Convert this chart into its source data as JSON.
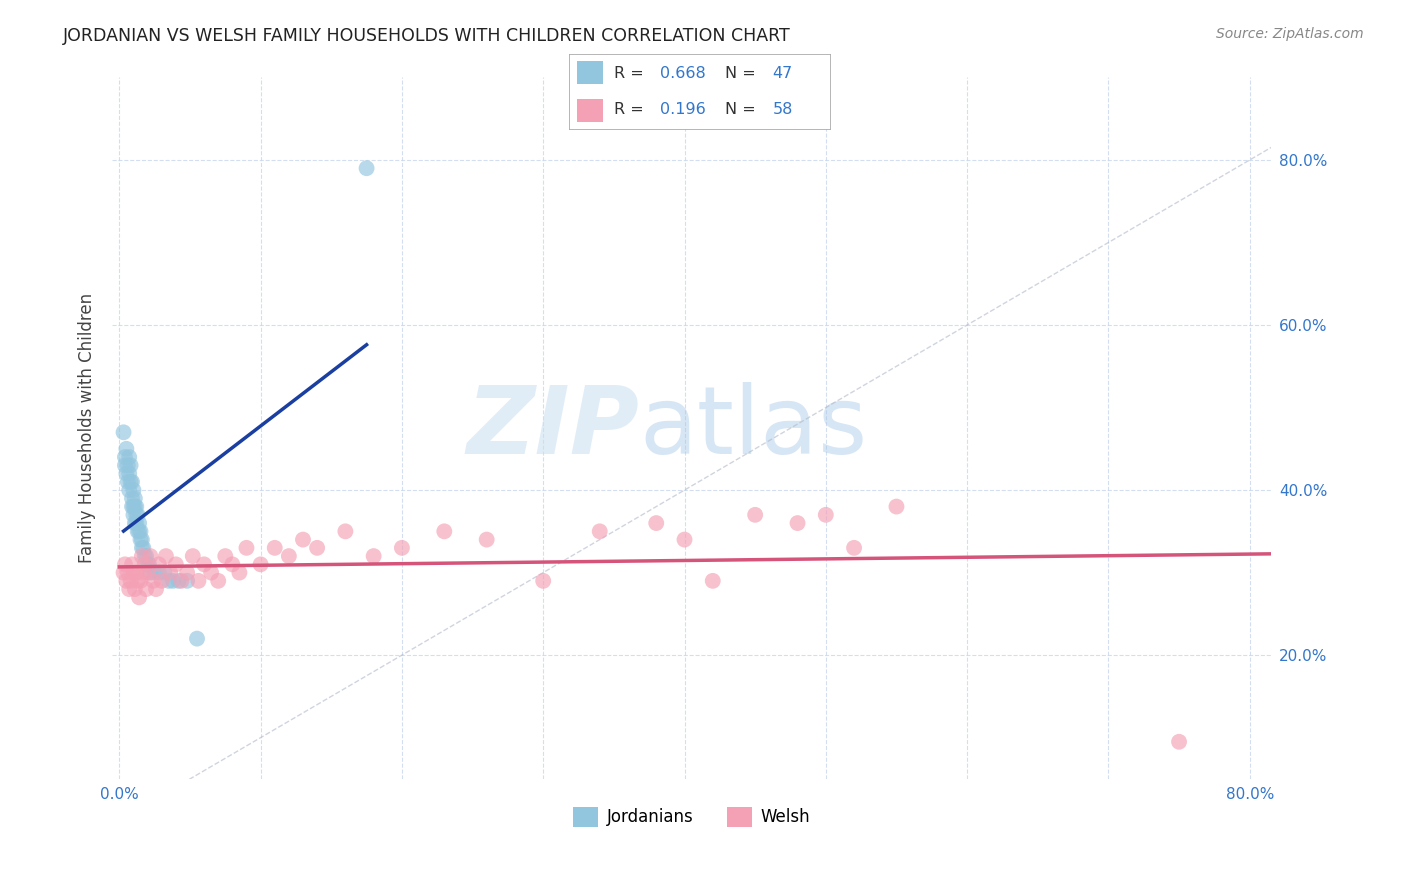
{
  "title": "JORDANIAN VS WELSH FAMILY HOUSEHOLDS WITH CHILDREN CORRELATION CHART",
  "source": "Source: ZipAtlas.com",
  "ylabel": "Family Households with Children",
  "color_jordanian": "#92c5de",
  "color_welsh": "#f4a0b5",
  "color_line_jordanian": "#1a3fa0",
  "color_line_welsh": "#d4547a",
  "color_grid": "#c8d8ee",
  "legend_r1": "R = 0.668",
  "legend_n1": "N = 47",
  "legend_r2": "R = 0.196",
  "legend_n2": "N = 58",
  "legend_color_r": "#333333",
  "legend_color_n": "#3377cc",
  "tick_color": "#3377cc",
  "jordanian_x": [
    0.003,
    0.004,
    0.004,
    0.005,
    0.005,
    0.006,
    0.006,
    0.007,
    0.007,
    0.007,
    0.008,
    0.008,
    0.009,
    0.009,
    0.009,
    0.01,
    0.01,
    0.01,
    0.011,
    0.011,
    0.011,
    0.012,
    0.012,
    0.012,
    0.013,
    0.013,
    0.014,
    0.014,
    0.015,
    0.015,
    0.016,
    0.016,
    0.017,
    0.018,
    0.019,
    0.02,
    0.021,
    0.022,
    0.025,
    0.028,
    0.032,
    0.035,
    0.038,
    0.042,
    0.048,
    0.055,
    0.175
  ],
  "jordanian_y": [
    0.47,
    0.44,
    0.43,
    0.45,
    0.42,
    0.43,
    0.41,
    0.44,
    0.42,
    0.4,
    0.43,
    0.41,
    0.41,
    0.39,
    0.38,
    0.4,
    0.38,
    0.37,
    0.39,
    0.38,
    0.36,
    0.38,
    0.37,
    0.36,
    0.37,
    0.35,
    0.36,
    0.35,
    0.35,
    0.34,
    0.34,
    0.33,
    0.33,
    0.32,
    0.32,
    0.31,
    0.31,
    0.3,
    0.3,
    0.3,
    0.3,
    0.29,
    0.29,
    0.29,
    0.29,
    0.22,
    0.79
  ],
  "welsh_x": [
    0.003,
    0.004,
    0.005,
    0.006,
    0.007,
    0.008,
    0.009,
    0.01,
    0.011,
    0.012,
    0.013,
    0.014,
    0.015,
    0.016,
    0.017,
    0.018,
    0.019,
    0.02,
    0.022,
    0.024,
    0.026,
    0.028,
    0.03,
    0.033,
    0.036,
    0.04,
    0.044,
    0.048,
    0.052,
    0.056,
    0.06,
    0.065,
    0.07,
    0.075,
    0.08,
    0.085,
    0.09,
    0.1,
    0.11,
    0.12,
    0.13,
    0.14,
    0.16,
    0.18,
    0.2,
    0.23,
    0.26,
    0.3,
    0.34,
    0.38,
    0.4,
    0.42,
    0.45,
    0.48,
    0.5,
    0.52,
    0.55,
    0.75
  ],
  "welsh_y": [
    0.3,
    0.31,
    0.29,
    0.3,
    0.28,
    0.29,
    0.31,
    0.3,
    0.28,
    0.3,
    0.29,
    0.27,
    0.29,
    0.32,
    0.3,
    0.31,
    0.28,
    0.3,
    0.32,
    0.29,
    0.28,
    0.31,
    0.29,
    0.32,
    0.3,
    0.31,
    0.29,
    0.3,
    0.32,
    0.29,
    0.31,
    0.3,
    0.29,
    0.32,
    0.31,
    0.3,
    0.33,
    0.31,
    0.33,
    0.32,
    0.34,
    0.33,
    0.35,
    0.32,
    0.33,
    0.35,
    0.34,
    0.29,
    0.35,
    0.36,
    0.34,
    0.29,
    0.37,
    0.36,
    0.37,
    0.33,
    0.38,
    0.095
  ],
  "xlim": [
    -0.005,
    0.815
  ],
  "ylim": [
    0.05,
    0.9
  ],
  "xticks": [
    0.0,
    0.1,
    0.2,
    0.3,
    0.4,
    0.5,
    0.6,
    0.7,
    0.8
  ],
  "yticks": [
    0.2,
    0.4,
    0.6,
    0.8
  ]
}
